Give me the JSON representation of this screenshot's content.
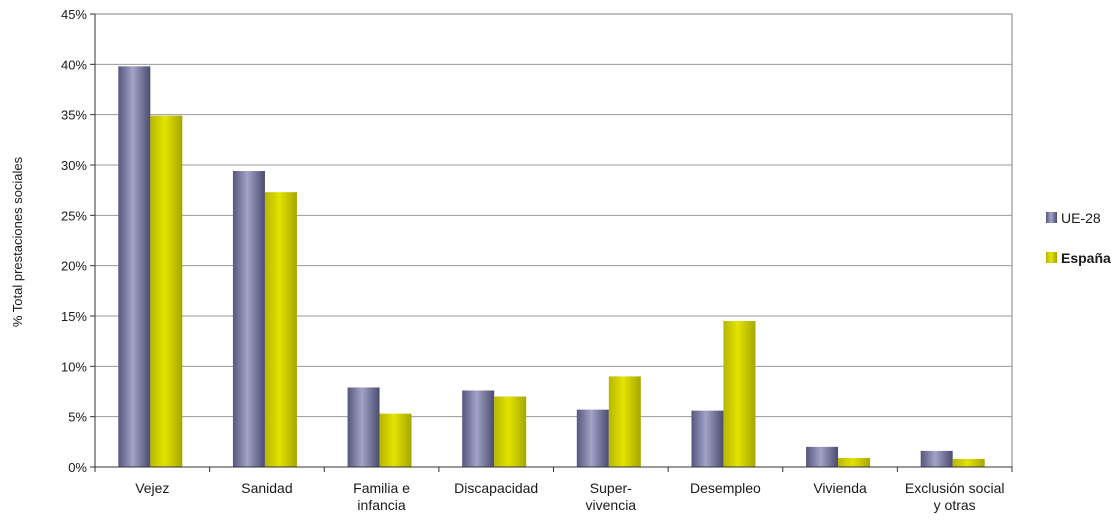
{
  "chart_data": {
    "type": "bar",
    "ylabel": "% Total prestaciones sociales",
    "ylim": [
      0,
      45
    ],
    "yticks": [
      "0%",
      "5%",
      "10%",
      "15%",
      "20%",
      "25%",
      "30%",
      "35%",
      "40%",
      "45%"
    ],
    "grid": true,
    "legend_position": "right",
    "categories": [
      [
        "Vejez"
      ],
      [
        "Sanidad"
      ],
      [
        "Familia e",
        "infancia"
      ],
      [
        "Discapacidad"
      ],
      [
        "Super-",
        "vivencia"
      ],
      [
        "Desempleo"
      ],
      [
        "Vivienda"
      ],
      [
        "Exclusión social",
        "y otras"
      ]
    ],
    "series": [
      {
        "name": "UE-28",
        "color": "#6f6f99",
        "values": [
          39.8,
          29.4,
          7.9,
          7.6,
          5.7,
          5.6,
          2.0,
          1.6
        ]
      },
      {
        "name": "España",
        "color": "#cfcf00",
        "values": [
          34.9,
          27.3,
          5.3,
          7.0,
          9.0,
          14.5,
          0.9,
          0.8
        ]
      }
    ]
  }
}
